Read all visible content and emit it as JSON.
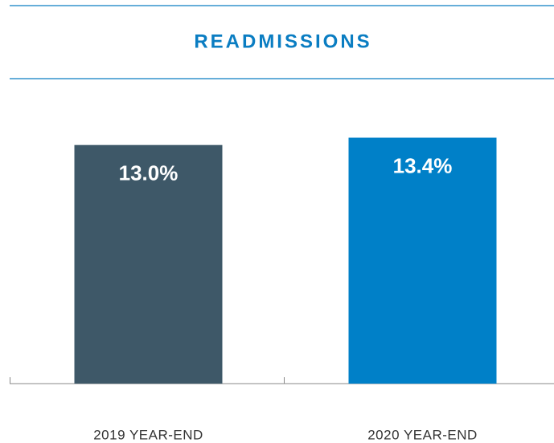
{
  "chart_data": {
    "type": "bar",
    "title": "READMISSIONS",
    "categories": [
      "2019 YEAR-END",
      "2020 YEAR-END"
    ],
    "values": [
      13.0,
      13.4
    ],
    "value_labels": [
      "13.0%",
      "13.4%"
    ],
    "colors": [
      "#3e5868",
      "#0080c8"
    ]
  }
}
